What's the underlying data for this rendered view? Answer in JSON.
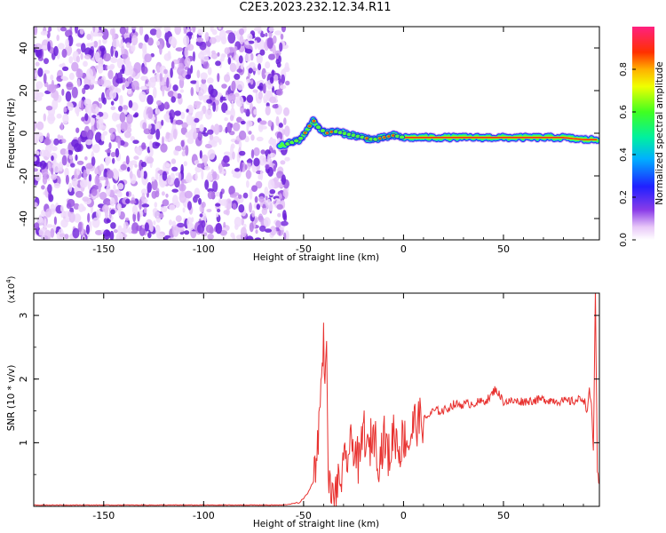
{
  "title": "C2E3.2023.232.12.34.R11",
  "chart_data": [
    {
      "type": "heatmap",
      "xlabel": "Height of straight line (km)",
      "ylabel": "Frequency (Hz)",
      "xlim": [
        -185,
        98
      ],
      "ylim": [
        -50,
        50
      ],
      "xticks": [
        -150,
        -100,
        -50,
        0,
        50
      ],
      "yticks": [
        -40,
        -20,
        0,
        20,
        40
      ],
      "noise_region_x": [
        -185,
        -58
      ],
      "trace": {
        "x": [
          -62,
          -58,
          -55,
          -52,
          -50,
          -48,
          -45,
          -42,
          -40,
          -38,
          -35,
          -30,
          -25,
          -20,
          -15,
          -10,
          -5,
          0,
          10,
          20,
          40,
          60,
          80,
          90,
          97
        ],
        "y": [
          -6,
          -5,
          -4,
          -3,
          -1,
          2,
          6,
          2,
          1,
          0,
          1,
          0,
          -1,
          -2,
          -3,
          -2,
          -1,
          -2,
          -2,
          -2,
          -2,
          -2,
          -2,
          -3,
          -3
        ]
      },
      "colorbar": {
        "label": "Normalized spectral amplitude",
        "ticks": [
          0.0,
          0.2,
          0.4,
          0.6,
          0.8
        ],
        "range": [
          0,
          1
        ]
      }
    },
    {
      "type": "line",
      "xlabel": "Height of straight line (km)",
      "ylabel": "SNR (10 * v/v)",
      "yscale_label": "(x10",
      "yscale_exp": "4",
      "yscale_close": ")",
      "xlim": [
        -185,
        98
      ],
      "ylim": [
        0,
        3.35
      ],
      "xticks": [
        -150,
        -100,
        -50,
        0,
        50
      ],
      "yticks": [
        1,
        2,
        3
      ],
      "color": "#e8312f",
      "series": [
        {
          "x": [
            -185,
            -60,
            -52,
            -48,
            -45,
            -43,
            -42,
            -41,
            -40,
            -39,
            -38.5,
            -38,
            -37,
            -36,
            -35,
            -33,
            -30,
            -28,
            -25,
            -22,
            -20,
            -18,
            -15,
            -12,
            -10,
            -7,
            -5,
            -2,
            0,
            3,
            5,
            10,
            15,
            20,
            25,
            30,
            35,
            40,
            43,
            46,
            50,
            60,
            70,
            80,
            85,
            90,
            92,
            93,
            94,
            95,
            96,
            97,
            98
          ],
          "y": [
            0.02,
            0.02,
            0.06,
            0.2,
            0.4,
            1.0,
            1.45,
            2.0,
            2.58,
            2.1,
            2.35,
            1.0,
            0.3,
            0.12,
            0.15,
            0.3,
            0.55,
            0.8,
            1.0,
            0.6,
            1.3,
            0.8,
            1.2,
            0.7,
            1.1,
            0.75,
            1.2,
            0.9,
            1.1,
            1.0,
            1.3,
            1.35,
            1.5,
            1.5,
            1.6,
            1.6,
            1.62,
            1.65,
            1.7,
            1.85,
            1.65,
            1.65,
            1.68,
            1.65,
            1.65,
            1.7,
            1.5,
            1.8,
            1.6,
            0.9,
            3.35,
            0.5,
            0.35
          ]
        }
      ]
    }
  ]
}
